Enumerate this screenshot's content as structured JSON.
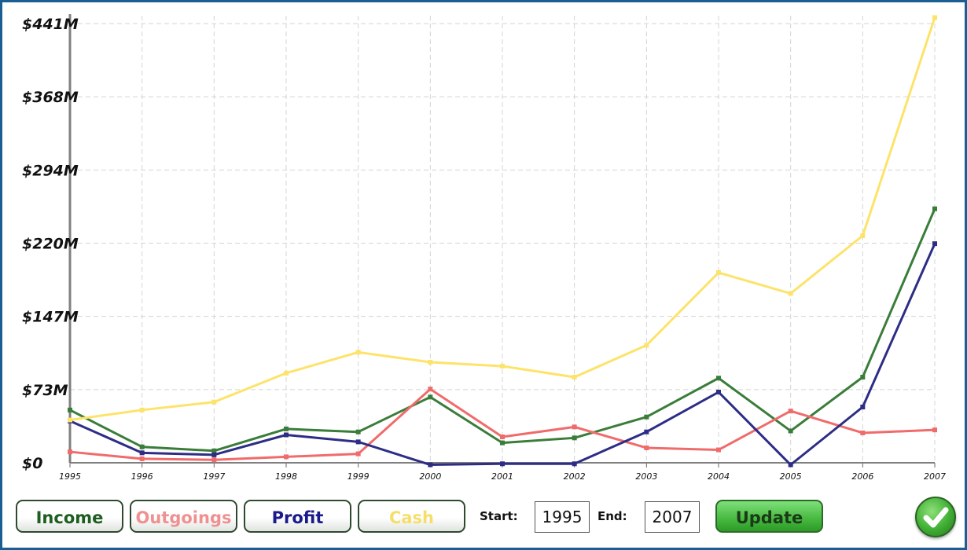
{
  "chart_data": {
    "type": "line",
    "categories": [
      "1995",
      "1996",
      "1997",
      "1998",
      "1999",
      "2000",
      "2001",
      "2002",
      "2003",
      "2004",
      "2005",
      "2006",
      "2007"
    ],
    "y_tick_labels": [
      "$0",
      "$73M",
      "$147M",
      "$220M",
      "$294M",
      "$368M",
      "$441M"
    ],
    "ylim": [
      0,
      441
    ],
    "y_unit": "$M",
    "grid": true,
    "series": [
      {
        "name": "Income",
        "color": "#3a7d3a",
        "values": [
          53,
          16,
          12,
          34,
          31,
          66,
          20,
          25,
          46,
          85,
          32,
          86,
          255
        ]
      },
      {
        "name": "Outgoings",
        "color": "#f06b6b",
        "values": [
          11,
          4,
          3,
          6,
          9,
          74,
          26,
          36,
          15,
          13,
          52,
          30,
          33
        ]
      },
      {
        "name": "Profit",
        "color": "#2d2d86",
        "values": [
          42,
          10,
          8,
          28,
          21,
          -2,
          -1,
          -1,
          31,
          71,
          -2,
          56,
          220
        ]
      },
      {
        "name": "Cash",
        "color": "#fde36a",
        "values": [
          43,
          53,
          61,
          90,
          111,
          101,
          97,
          86,
          118,
          191,
          170,
          228,
          447
        ]
      }
    ]
  },
  "buttons": {
    "income": "Income",
    "outgoings": "Outgoings",
    "profit": "Profit",
    "cash": "Cash",
    "update": "Update"
  },
  "range": {
    "start_label": "Start:",
    "start_value": "1995",
    "end_label": "End:",
    "end_value": "2007"
  },
  "colors": {
    "frame": "#1a5f93",
    "income": "#1e5e1e",
    "outgoings": "#f09090",
    "profit": "#1a1a8c",
    "cash": "#f5df6a",
    "update": "#46b83f"
  },
  "icons": {
    "ok": "checkmark-icon"
  }
}
